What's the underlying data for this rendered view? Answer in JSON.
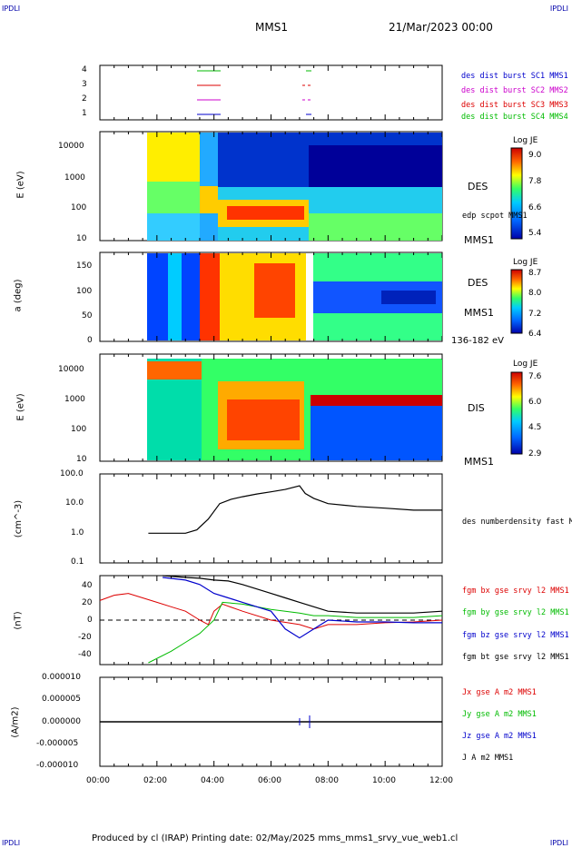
{
  "header": {
    "corner_left": "IPDLI",
    "corner_right": "IPDLI",
    "title": "MMS1",
    "date": "21/Mar/2023 00:00"
  },
  "footer": {
    "text": "Produced by cl (IRAP)   Printing date: 02/May/2025   mms_mms1_srvy_vue_web1.cl",
    "corner_left": "IPDLI",
    "corner_right": "IPDLI"
  },
  "colors": {
    "blue": "#0000cc",
    "magenta": "#cc00cc",
    "red": "#dd0000",
    "green": "#00bb00"
  },
  "panels": {
    "burst": {
      "labels": [
        "des dist burst SC1 MMS1",
        "des dist burst SC2 MMS2",
        "des dist burst SC3 MMS3",
        "des dist burst SC4 MMS4"
      ],
      "yticks": [
        "4",
        "3",
        "2",
        "1"
      ]
    },
    "des_energy": {
      "ylabel": "E (eV)",
      "yticks": [
        "10000",
        "1000",
        "100",
        "10"
      ],
      "label": "DES",
      "overlay": "edp scpot MMS1",
      "sublabel": "MMS1",
      "colorbar": {
        "title": "Log JE",
        "ticks": [
          "9.0",
          "7.8",
          "6.6",
          "5.4"
        ]
      }
    },
    "des_pitch": {
      "ylabel": "a (deg)",
      "yticks": [
        "150",
        "100",
        "50",
        "0"
      ],
      "label": "DES",
      "sublabel": "MMS1",
      "range": "136-182 eV",
      "colorbar": {
        "title": "Log JE",
        "ticks": [
          "8.7",
          "8.0",
          "7.2",
          "6.4"
        ]
      }
    },
    "dis_energy": {
      "ylabel": "E (eV)",
      "yticks": [
        "10000",
        "1000",
        "100",
        "10"
      ],
      "label": "DIS",
      "sublabel": "MMS1",
      "colorbar": {
        "title": "Log JE",
        "ticks": [
          "7.6",
          "6.0",
          "4.5",
          "2.9"
        ]
      }
    },
    "density": {
      "ylabel": "(cm^-3)",
      "yticks": [
        "100.0",
        "10.0",
        "1.0",
        "0.1"
      ],
      "label": "des numberdensity fast M"
    },
    "field": {
      "ylabel": "(nT)",
      "yticks": [
        "40",
        "20",
        "0",
        "-20",
        "-40"
      ],
      "labels": [
        "fgm bx gse srvy l2 MMS1",
        "fgm by gse srvy l2 MMS1",
        "fgm bz gse srvy l2 MMS1",
        "fgm bt gse srvy l2 MMS1"
      ]
    },
    "current": {
      "ylabel": "(A/m2)",
      "yticks": [
        "0.000010",
        "0.000005",
        "0.000000",
        "-0.000005",
        "-0.000010"
      ],
      "labels": [
        "Jx gse A m2 MMS1",
        "Jy gse A m2 MMS1",
        "Jz gse A m2 MMS1",
        "J A m2 MMS1"
      ]
    }
  },
  "xaxis": {
    "ticks": [
      "00:00",
      "02:00",
      "04:00",
      "06:00",
      "08:00",
      "10:00",
      "12:00"
    ],
    "range_hours": [
      0,
      12
    ]
  },
  "chart_data": {
    "type": "line",
    "title": "MMS1",
    "x_unit": "UT hours",
    "density": {
      "x": [
        1.7,
        2.5,
        3.0,
        3.4,
        3.8,
        4.2,
        4.6,
        5.0,
        5.5,
        6.0,
        6.5,
        7.0,
        7.2,
        7.5,
        8.0,
        9.0,
        10.0,
        11.0,
        12.0
      ],
      "y": [
        1.0,
        1.0,
        1.0,
        1.3,
        3.0,
        10.0,
        14.0,
        17.0,
        21.0,
        25.0,
        30.0,
        40.0,
        22.0,
        15.0,
        10.0,
        8.0,
        7.0,
        6.0,
        6.0
      ]
    },
    "bx": {
      "x": [
        0,
        0.5,
        1.0,
        1.5,
        2.0,
        2.5,
        3.0,
        3.5,
        3.8,
        4.0,
        4.3,
        5.0,
        6.0,
        7.0,
        7.5,
        8.0,
        9.0,
        10.0,
        11.0,
        12.0
      ],
      "y": [
        22,
        28,
        30,
        25,
        20,
        15,
        10,
        0,
        -5,
        10,
        18,
        10,
        0,
        -5,
        -10,
        -5,
        -5,
        -3,
        -2,
        0
      ]
    },
    "by": {
      "x": [
        1.7,
        2.5,
        3.0,
        3.5,
        4.0,
        4.3,
        5.0,
        6.0,
        7.0,
        7.5,
        8.0,
        9.0,
        10.0,
        11.0,
        12.0
      ],
      "y": [
        -48,
        -35,
        -25,
        -15,
        0,
        20,
        18,
        12,
        8,
        5,
        5,
        3,
        3,
        3,
        5
      ]
    },
    "bz": {
      "x": [
        2.2,
        3.0,
        3.5,
        4.0,
        4.5,
        5.0,
        6.0,
        6.5,
        7.0,
        7.5,
        8.0,
        9.0,
        10.0,
        11.0,
        12.0
      ],
      "y": [
        48,
        45,
        40,
        30,
        25,
        20,
        10,
        -10,
        -20,
        -10,
        0,
        -2,
        -2,
        -3,
        -3
      ]
    },
    "bt": {
      "x": [
        2.2,
        3.0,
        3.5,
        4.0,
        4.5,
        5.0,
        6.0,
        6.5,
        7.0,
        7.5,
        8.0,
        9.0,
        10.0,
        11.0,
        12.0
      ],
      "y": [
        50,
        48,
        47,
        45,
        44,
        40,
        30,
        25,
        20,
        15,
        10,
        8,
        8,
        8,
        10
      ]
    },
    "ylim_density": [
      0.1,
      100
    ],
    "ylim_field": [
      -50,
      50
    ],
    "ylim_current": [
      -1e-05,
      1e-05
    ]
  }
}
